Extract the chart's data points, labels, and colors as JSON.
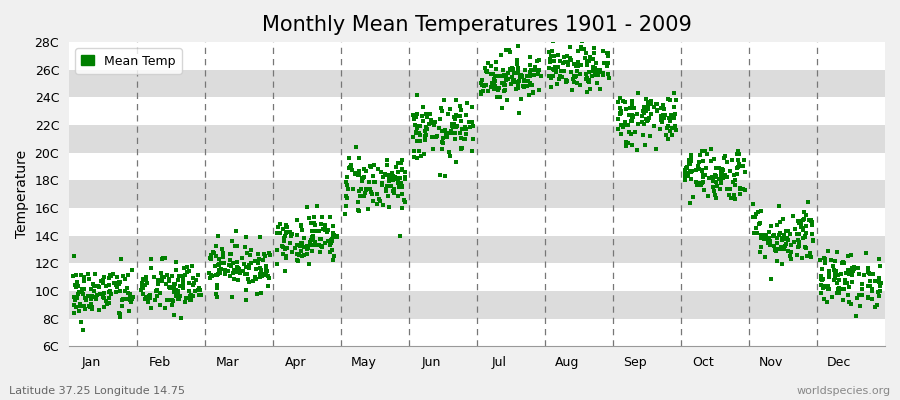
{
  "title": "Monthly Mean Temperatures 1901 - 2009",
  "ylabel": "Temperature",
  "footer_left": "Latitude 37.25 Longitude 14.75",
  "footer_right": "worldspecies.org",
  "legend_label": "Mean Temp",
  "background_color": "#f0f0f0",
  "plot_bg_color": "#dcdcdc",
  "stripe_color": "#e8e8e8",
  "dot_color": "#008000",
  "dot_size": 8,
  "ytick_labels": [
    "6C",
    "8C",
    "10C",
    "12C",
    "14C",
    "16C",
    "18C",
    "20C",
    "22C",
    "24C",
    "26C",
    "28C"
  ],
  "ytick_values": [
    6,
    8,
    10,
    12,
    14,
    16,
    18,
    20,
    22,
    24,
    26,
    28
  ],
  "ylim": [
    6,
    28
  ],
  "months": [
    "Jan",
    "Feb",
    "Mar",
    "Apr",
    "May",
    "Jun",
    "Jul",
    "Aug",
    "Sep",
    "Oct",
    "Nov",
    "Dec"
  ],
  "monthly_means": [
    9.8,
    10.2,
    11.8,
    13.8,
    17.8,
    21.5,
    25.5,
    26.0,
    22.5,
    18.5,
    14.0,
    10.8
  ],
  "monthly_stds": [
    1.0,
    1.0,
    0.9,
    0.9,
    1.1,
    1.1,
    0.9,
    0.8,
    1.0,
    1.0,
    1.1,
    1.0
  ],
  "n_years": 109,
  "seed": 42,
  "title_fontsize": 15,
  "axis_fontsize": 10,
  "tick_fontsize": 9,
  "footer_fontsize": 8
}
